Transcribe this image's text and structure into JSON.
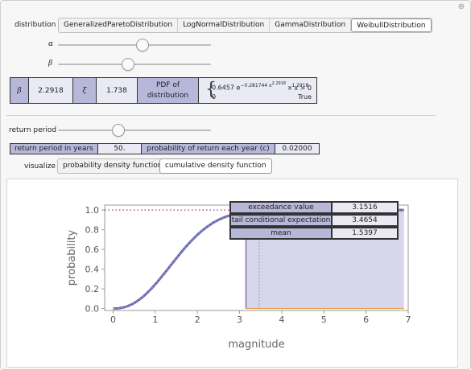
{
  "controls": {
    "distribution_label": "distribution",
    "distribution_options": [
      "GeneralizedParetoDistribution",
      "LogNormalDistribution",
      "GammaDistribution",
      "WeibullDistribution"
    ],
    "distribution_selected": "WeibullDistribution",
    "alpha_label": "α",
    "alpha_level": 0.55,
    "beta_label": "β",
    "beta_level": 0.45,
    "return_period_label": "return period",
    "return_period_level": 0.38,
    "visualize_label": "visualize",
    "visualize_options": [
      "probability density function",
      "cumulative density function"
    ],
    "visualize_selected": "cumulative density function"
  },
  "params_table": {
    "beta_symbol": "β",
    "beta_value": "2.2918",
    "xi_symbol": "ξ",
    "xi_value": "1.738",
    "pdf_header": "PDF of distribution",
    "pdf_case1": "0.6457 e",
    "pdf_case1_exp": "−0.281744 x",
    "pdf_case1_exp2": "2.2918",
    "pdf_case1_tail": " x",
    "pdf_case1_tail_exp": "1.2918",
    "pdf_cond1": "x > 0",
    "pdf_case2": "0",
    "pdf_cond2": "True"
  },
  "return_table": {
    "period_header": "return period in years",
    "period_value": "50.",
    "prob_header": "probability of return each year (c)",
    "prob_value": "0.02000"
  },
  "results_table": {
    "rows": [
      {
        "label": "exceedance value",
        "value": "3.1516"
      },
      {
        "label": "tail conditional expectation",
        "value": "3.4654"
      },
      {
        "label": "mean",
        "value": "1.5397"
      }
    ]
  },
  "colors": {
    "curve": "#4b4ba8",
    "shade": "#c9c9e6",
    "exceedance_line": "#8c6bb1",
    "dotted": "#b03060",
    "baseline": "#e8a040"
  },
  "chart_data": {
    "type": "line",
    "title": "",
    "xlabel": "magnitude",
    "ylabel": "probability",
    "xlim": [
      -0.2,
      7
    ],
    "ylim": [
      -0.02,
      1.05
    ],
    "x_ticks": [
      0,
      1,
      2,
      3,
      4,
      5,
      6,
      7
    ],
    "y_ticks": [
      "0.0",
      "0.2",
      "0.4",
      "0.6",
      "0.8",
      "1.0"
    ],
    "distribution": "Weibull",
    "shape": 2.2918,
    "scale": 1.738,
    "exceedance_x": 3.1516,
    "tce_x": 3.4654,
    "shade_from": 3.1516,
    "shade_to": 6.9,
    "series": [
      {
        "x": [
          0,
          0.25,
          0.5,
          0.75,
          1.0,
          1.25,
          1.5,
          1.75,
          2.0,
          2.25,
          2.5,
          2.75,
          3.0,
          3.25,
          3.5,
          4.0,
          4.5,
          5.0,
          6.0,
          7.0
        ],
        "values": [
          0,
          0.011,
          0.057,
          0.141,
          0.258,
          0.393,
          0.527,
          0.652,
          0.757,
          0.842,
          0.902,
          0.943,
          0.969,
          0.984,
          0.992,
          0.998,
          1.0,
          1.0,
          1.0,
          1.0
        ]
      }
    ]
  }
}
